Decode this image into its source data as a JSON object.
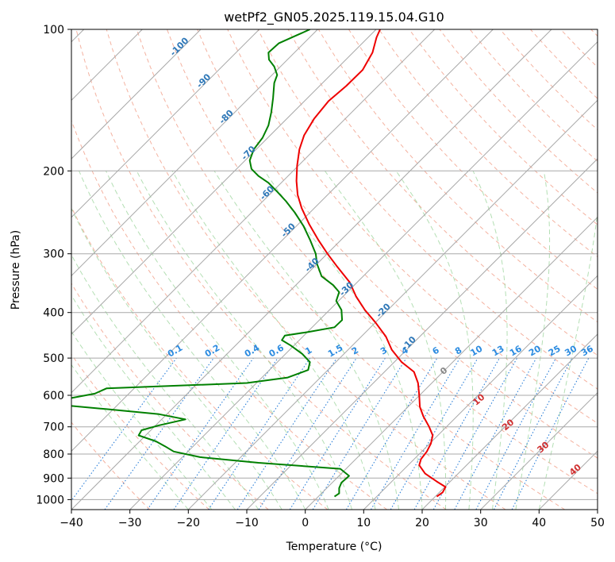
{
  "chart_data": {
    "type": "line",
    "title": "wetPf2_GN05.2025.119.15.04.G10",
    "xlabel": "Temperature (°C)",
    "ylabel": "Pressure (hPa)",
    "xlim": [
      -40,
      50
    ],
    "ylim": [
      1050,
      100
    ],
    "y_scale": "log",
    "x_ticks": [
      -40,
      -30,
      -20,
      -10,
      0,
      10,
      20,
      30,
      40,
      50
    ],
    "y_ticks": [
      100,
      200,
      300,
      400,
      500,
      600,
      700,
      800,
      900,
      1000
    ],
    "grid": true,
    "series": [
      {
        "role": "temperature",
        "color": "#ee0000",
        "points": [
          [
            22.5,
            985
          ],
          [
            23.5,
            965
          ],
          [
            24.0,
            940
          ],
          [
            22.5,
            915
          ],
          [
            20.5,
            880
          ],
          [
            19.5,
            845
          ],
          [
            19.8,
            820
          ],
          [
            20.8,
            790
          ],
          [
            21.5,
            760
          ],
          [
            21.8,
            730
          ],
          [
            21.2,
            700
          ],
          [
            20.2,
            665
          ],
          [
            19.6,
            635
          ],
          [
            19.5,
            600
          ],
          [
            19.3,
            565
          ],
          [
            18.6,
            535
          ],
          [
            16.5,
            510
          ],
          [
            14.8,
            480
          ],
          [
            13.8,
            450
          ],
          [
            12.0,
            420
          ],
          [
            10.2,
            395
          ],
          [
            8.7,
            370
          ],
          [
            7.6,
            345
          ],
          [
            5.5,
            320
          ],
          [
            3.8,
            300
          ],
          [
            2.2,
            280
          ],
          [
            0.7,
            260
          ],
          [
            -0.6,
            240
          ],
          [
            -1.3,
            225
          ],
          [
            -1.5,
            210
          ],
          [
            -1.4,
            195
          ],
          [
            -1.0,
            180
          ],
          [
            -0.2,
            168
          ],
          [
            1.5,
            155
          ],
          [
            4.0,
            142
          ],
          [
            7.0,
            132
          ],
          [
            9.8,
            122
          ],
          [
            11.5,
            112
          ],
          [
            12.2,
            104
          ],
          [
            12.8,
            100
          ]
        ]
      },
      {
        "role": "dewpoint",
        "color": "#008000",
        "points": [
          [
            5.0,
            985
          ],
          [
            5.8,
            970
          ],
          [
            5.8,
            945
          ],
          [
            6.2,
            920
          ],
          [
            7.5,
            890
          ],
          [
            6.0,
            860
          ],
          [
            -8.0,
            835
          ],
          [
            -18.0,
            812
          ],
          [
            -22.5,
            790
          ],
          [
            -24.0,
            770
          ],
          [
            -25.5,
            752
          ],
          [
            -28.5,
            730
          ],
          [
            -28.0,
            712
          ],
          [
            -25.0,
            695
          ],
          [
            -20.5,
            675
          ],
          [
            -25.0,
            658
          ],
          [
            -34.0,
            642
          ],
          [
            -40.0,
            632
          ],
          [
            -43.0,
            620
          ],
          [
            -40.0,
            608
          ],
          [
            -36.0,
            595
          ],
          [
            -34.0,
            580
          ],
          [
            -10.0,
            565
          ],
          [
            -3.0,
            550
          ],
          [
            0.5,
            530
          ],
          [
            0.8,
            510
          ],
          [
            -0.5,
            490
          ],
          [
            -2.5,
            470
          ],
          [
            -4.0,
            458
          ],
          [
            -3.5,
            448
          ],
          [
            0.5,
            440
          ],
          [
            5.0,
            430
          ],
          [
            6.3,
            415
          ],
          [
            6.2,
            395
          ],
          [
            5.3,
            378
          ],
          [
            5.8,
            362
          ],
          [
            4.8,
            350
          ],
          [
            2.8,
            335
          ],
          [
            2.0,
            315
          ],
          [
            1.8,
            300
          ],
          [
            0.8,
            280
          ],
          [
            -0.3,
            262
          ],
          [
            -1.8,
            245
          ],
          [
            -3.3,
            232
          ],
          [
            -4.7,
            222
          ],
          [
            -6.3,
            212
          ],
          [
            -8.0,
            205
          ],
          [
            -9.2,
            198
          ],
          [
            -9.5,
            190
          ],
          [
            -8.8,
            180
          ],
          [
            -7.3,
            170
          ],
          [
            -6.3,
            160
          ],
          [
            -5.8,
            150
          ],
          [
            -5.5,
            140
          ],
          [
            -5.3,
            130
          ],
          [
            -4.8,
            125
          ],
          [
            -5.3,
            120
          ],
          [
            -6.2,
            116
          ],
          [
            -6.3,
            112
          ],
          [
            -4.5,
            107
          ],
          [
            -1.5,
            103
          ],
          [
            0.8,
            100
          ]
        ]
      }
    ],
    "isotherm_labels": [
      "-100",
      "-90",
      "-80",
      "-70",
      "-60",
      "-50",
      "-40",
      "-30",
      "-20",
      "-10"
    ],
    "mixing_ratio_labels": [
      "0.1",
      "0.2",
      "0.4",
      "0.6",
      "1",
      "1.5",
      "2",
      "3",
      "4",
      "6",
      "8",
      "10",
      "13",
      "16",
      "20",
      "25",
      "30",
      "36"
    ],
    "adiabat_labels": [
      "0",
      "10",
      "20",
      "30",
      "40"
    ]
  }
}
